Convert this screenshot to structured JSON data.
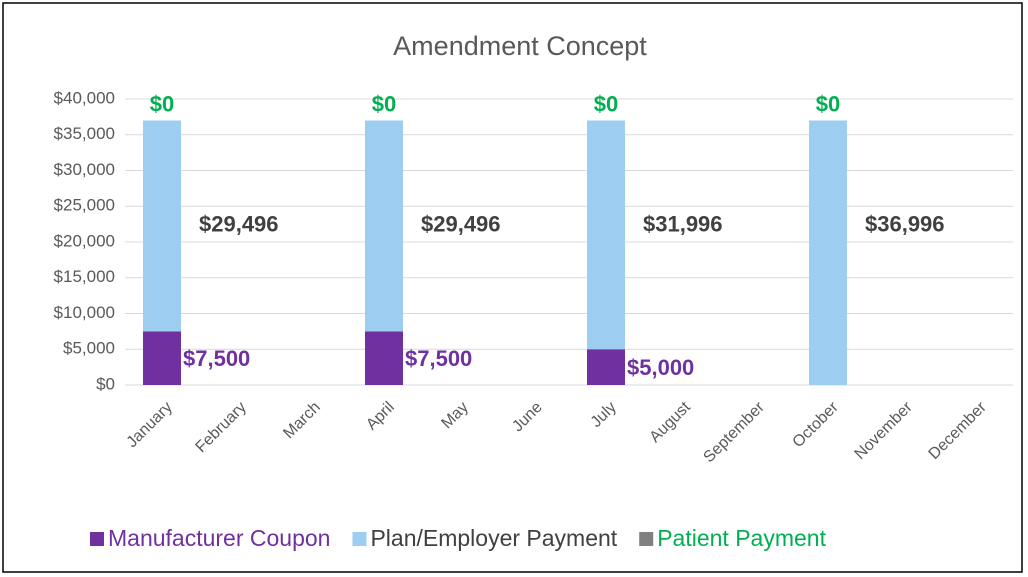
{
  "chart_data": {
    "type": "stacked_bar",
    "title": "Amendment Concept",
    "categories": [
      "January",
      "February",
      "March",
      "April",
      "May",
      "June",
      "July",
      "August",
      "September",
      "October",
      "November",
      "December"
    ],
    "series": [
      {
        "name": "Manufacturer Coupon",
        "color": "#7030a0",
        "label_color": "#7030a0",
        "values": [
          7500,
          null,
          null,
          7500,
          null,
          null,
          5000,
          null,
          null,
          null,
          null,
          null
        ],
        "value_labels": [
          "$7,500",
          null,
          null,
          "$7,500",
          null,
          null,
          "$5,000",
          null,
          null,
          null,
          null,
          null
        ]
      },
      {
        "name": "Plan/Employer Payment",
        "color": "#9dcdf0",
        "label_color": "#404040",
        "values": [
          29496,
          null,
          null,
          29496,
          null,
          null,
          31996,
          null,
          null,
          36996,
          null,
          null
        ],
        "value_labels": [
          "$29,496",
          null,
          null,
          "$29,496",
          null,
          null,
          "$31,996",
          null,
          null,
          "$36,996",
          null,
          null
        ]
      },
      {
        "name": "Patient Payment",
        "color": "#808080",
        "label_color": "#00b050",
        "values": [
          0,
          null,
          null,
          0,
          null,
          null,
          0,
          null,
          null,
          0,
          null,
          null
        ],
        "value_labels": [
          "$0",
          null,
          null,
          "$0",
          null,
          null,
          "$0",
          null,
          null,
          "$0",
          null,
          null
        ]
      }
    ],
    "ylim": [
      0,
      40000
    ],
    "yticks": [
      {
        "value": 0,
        "label": "$0"
      },
      {
        "value": 5000,
        "label": "$5,000"
      },
      {
        "value": 10000,
        "label": "$10,000"
      },
      {
        "value": 15000,
        "label": "$15,000"
      },
      {
        "value": 20000,
        "label": "$20,000"
      },
      {
        "value": 25000,
        "label": "$25,000"
      },
      {
        "value": 30000,
        "label": "$30,000"
      },
      {
        "value": 35000,
        "label": "$35,000"
      },
      {
        "value": 40000,
        "label": "$40,000"
      }
    ],
    "grid": true,
    "legend": "bottom"
  }
}
